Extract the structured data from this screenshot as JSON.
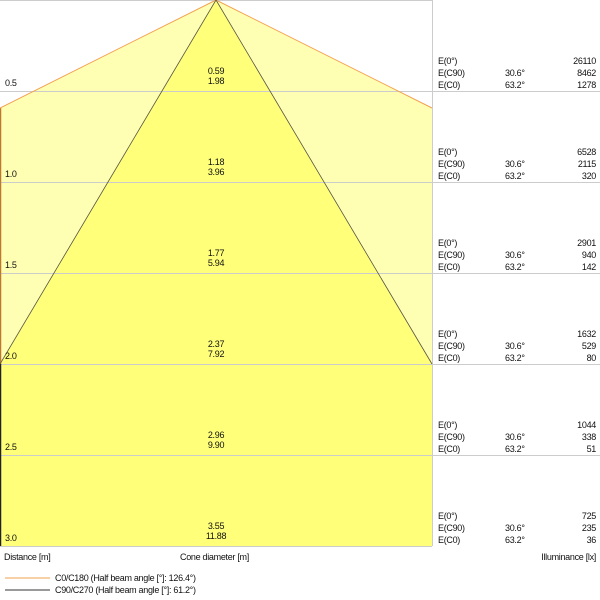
{
  "colors": {
    "outer_fill": "#ffffb4",
    "inner_fill": "#ffff7a",
    "c0_line": "#f0a050",
    "c90_line": "#555544",
    "grid": "#cccccc"
  },
  "rows": [
    {
      "distance": "0.5",
      "c0_diameter": "0.59",
      "c90_diameter": "1.98",
      "e0": "26110",
      "ec90_angle": "30.6°",
      "ec90": "8462",
      "ec0_angle": "63.2°",
      "ec0": "1278"
    },
    {
      "distance": "1.0",
      "c0_diameter": "1.18",
      "c90_diameter": "3.96",
      "e0": "6528",
      "ec90_angle": "30.6°",
      "ec90": "2115",
      "ec0_angle": "63.2°",
      "ec0": "320"
    },
    {
      "distance": "1.5",
      "c0_diameter": "1.77",
      "c90_diameter": "5.94",
      "e0": "2901",
      "ec90_angle": "30.6°",
      "ec90": "940",
      "ec0_angle": "63.2°",
      "ec0": "142"
    },
    {
      "distance": "2.0",
      "c0_diameter": "2.37",
      "c90_diameter": "7.92",
      "e0": "1632",
      "ec90_angle": "30.6°",
      "ec90": "529",
      "ec0_angle": "63.2°",
      "ec0": "80"
    },
    {
      "distance": "2.5",
      "c0_diameter": "2.96",
      "c90_diameter": "9.90",
      "e0": "1044",
      "ec90_angle": "30.6°",
      "ec90": "338",
      "ec0_angle": "63.2°",
      "ec0": "51"
    },
    {
      "distance": "3.0",
      "c0_diameter": "3.55",
      "c90_diameter": "11.88",
      "e0": "725",
      "ec90_angle": "30.6°",
      "ec90": "235",
      "ec0_angle": "63.2°",
      "ec0": "36"
    }
  ],
  "labels": {
    "e0": "E(0°)",
    "ec90": "E(C90)",
    "ec0": "E(C0)"
  },
  "footer": {
    "distance": "Distance [m]",
    "cone": "Cone diameter [m]",
    "illuminance": "Illuminance [lx]"
  },
  "legend": {
    "c0": "C0/C180 (Half beam angle [°]: 126.4°)",
    "c90": "C90/C270 (Half beam angle [°]: 61.2°)"
  }
}
